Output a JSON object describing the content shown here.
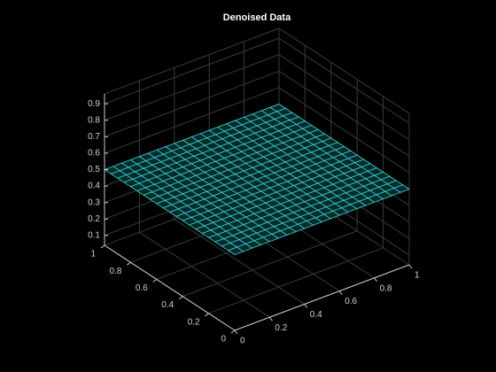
{
  "chart_data": {
    "type": "mesh",
    "title": "Denoised Data",
    "x": [
      0,
      0.05,
      0.1,
      0.15,
      0.2,
      0.25,
      0.3,
      0.35,
      0.4,
      0.45,
      0.5,
      0.55,
      0.6,
      0.65,
      0.7,
      0.75,
      0.8,
      0.85,
      0.9,
      0.95,
      1
    ],
    "y": [
      0,
      0.05,
      0.1,
      0.15,
      0.2,
      0.25,
      0.3,
      0.35,
      0.4,
      0.45,
      0.5,
      0.55,
      0.6,
      0.65,
      0.7,
      0.75,
      0.8,
      0.85,
      0.9,
      0.95,
      1
    ],
    "z": [
      [
        0.5,
        0.5,
        0.5,
        0.5,
        0.5,
        0.5,
        0.5,
        0.5,
        0.5,
        0.5,
        0.5,
        0.5,
        0.5,
        0.5,
        0.5,
        0.5,
        0.5,
        0.5,
        0.5,
        0.5,
        0.5
      ],
      [
        0.5,
        0.5,
        0.5,
        0.5,
        0.5,
        0.5,
        0.5,
        0.5,
        0.5,
        0.5,
        0.5,
        0.5,
        0.5,
        0.5,
        0.5,
        0.5,
        0.5,
        0.5,
        0.5,
        0.5,
        0.5
      ],
      [
        0.5,
        0.5,
        0.5,
        0.5,
        0.5,
        0.5,
        0.5,
        0.5,
        0.5,
        0.5,
        0.5,
        0.5,
        0.5,
        0.5,
        0.5,
        0.5,
        0.5,
        0.5,
        0.5,
        0.5,
        0.5
      ],
      [
        0.5,
        0.5,
        0.5,
        0.5,
        0.5,
        0.5,
        0.5,
        0.5,
        0.5,
        0.5,
        0.5,
        0.5,
        0.5,
        0.5,
        0.5,
        0.5,
        0.5,
        0.5,
        0.5,
        0.5,
        0.5
      ],
      [
        0.5,
        0.5,
        0.5,
        0.5,
        0.5,
        0.5,
        0.5,
        0.5,
        0.5,
        0.5,
        0.5,
        0.5,
        0.5,
        0.5,
        0.5,
        0.5,
        0.5,
        0.5,
        0.5,
        0.5,
        0.5
      ],
      [
        0.5,
        0.5,
        0.5,
        0.5,
        0.5,
        0.5,
        0.5,
        0.5,
        0.5,
        0.5,
        0.5,
        0.5,
        0.5,
        0.5,
        0.5,
        0.5,
        0.5,
        0.5,
        0.5,
        0.5,
        0.5
      ],
      [
        0.5,
        0.5,
        0.5,
        0.5,
        0.5,
        0.5,
        0.5,
        0.5,
        0.5,
        0.5,
        0.5,
        0.5,
        0.5,
        0.5,
        0.5,
        0.5,
        0.5,
        0.5,
        0.5,
        0.5,
        0.5
      ],
      [
        0.5,
        0.5,
        0.5,
        0.5,
        0.5,
        0.5,
        0.5,
        0.5,
        0.5,
        0.5,
        0.5,
        0.5,
        0.5,
        0.5,
        0.5,
        0.5,
        0.5,
        0.5,
        0.5,
        0.5,
        0.5
      ],
      [
        0.5,
        0.5,
        0.5,
        0.5,
        0.5,
        0.5,
        0.5,
        0.5,
        0.5,
        0.5,
        0.5,
        0.5,
        0.5,
        0.5,
        0.5,
        0.5,
        0.5,
        0.5,
        0.5,
        0.5,
        0.5
      ],
      [
        0.5,
        0.5,
        0.5,
        0.5,
        0.5,
        0.5,
        0.5,
        0.5,
        0.5,
        0.5,
        0.5,
        0.5,
        0.5,
        0.5,
        0.5,
        0.5,
        0.5,
        0.5,
        0.5,
        0.5,
        0.5
      ],
      [
        0.5,
        0.5,
        0.5,
        0.5,
        0.5,
        0.5,
        0.5,
        0.5,
        0.5,
        0.5,
        0.5,
        0.5,
        0.5,
        0.5,
        0.5,
        0.5,
        0.5,
        0.5,
        0.5,
        0.5,
        0.5
      ],
      [
        0.5,
        0.5,
        0.5,
        0.5,
        0.5,
        0.5,
        0.5,
        0.5,
        0.5,
        0.5,
        0.5,
        0.5,
        0.5,
        0.5,
        0.5,
        0.5,
        0.5,
        0.5,
        0.5,
        0.5,
        0.5
      ],
      [
        0.5,
        0.5,
        0.5,
        0.5,
        0.5,
        0.5,
        0.5,
        0.5,
        0.5,
        0.5,
        0.5,
        0.5,
        0.5,
        0.5,
        0.5,
        0.5,
        0.5,
        0.5,
        0.5,
        0.5,
        0.5
      ],
      [
        0.5,
        0.5,
        0.5,
        0.5,
        0.5,
        0.5,
        0.5,
        0.5,
        0.5,
        0.5,
        0.5,
        0.5,
        0.5,
        0.5,
        0.5,
        0.5,
        0.5,
        0.5,
        0.5,
        0.5,
        0.5
      ],
      [
        0.5,
        0.5,
        0.5,
        0.5,
        0.5,
        0.5,
        0.5,
        0.5,
        0.5,
        0.5,
        0.5,
        0.5,
        0.5,
        0.5,
        0.5,
        0.5,
        0.5,
        0.5,
        0.5,
        0.5,
        0.5
      ],
      [
        0.5,
        0.5,
        0.5,
        0.5,
        0.5,
        0.5,
        0.5,
        0.5,
        0.5,
        0.5,
        0.5,
        0.5,
        0.5,
        0.5,
        0.5,
        0.5,
        0.5,
        0.5,
        0.5,
        0.5,
        0.5
      ],
      [
        0.5,
        0.5,
        0.5,
        0.5,
        0.5,
        0.5,
        0.5,
        0.5,
        0.5,
        0.5,
        0.5,
        0.5,
        0.5,
        0.5,
        0.5,
        0.5,
        0.5,
        0.5,
        0.5,
        0.5,
        0.5
      ],
      [
        0.5,
        0.5,
        0.5,
        0.5,
        0.5,
        0.5,
        0.5,
        0.5,
        0.5,
        0.5,
        0.5,
        0.5,
        0.5,
        0.5,
        0.5,
        0.5,
        0.5,
        0.5,
        0.5,
        0.5,
        0.5
      ],
      [
        0.5,
        0.5,
        0.5,
        0.5,
        0.5,
        0.5,
        0.5,
        0.5,
        0.5,
        0.5,
        0.5,
        0.5,
        0.5,
        0.5,
        0.5,
        0.5,
        0.5,
        0.5,
        0.5,
        0.5,
        0.5
      ],
      [
        0.5,
        0.5,
        0.5,
        0.5,
        0.5,
        0.5,
        0.5,
        0.5,
        0.5,
        0.5,
        0.5,
        0.5,
        0.5,
        0.5,
        0.5,
        0.5,
        0.5,
        0.5,
        0.5,
        0.5,
        0.5
      ],
      [
        0.5,
        0.5,
        0.5,
        0.5,
        0.5,
        0.5,
        0.5,
        0.5,
        0.5,
        0.5,
        0.5,
        0.5,
        0.5,
        0.5,
        0.5,
        0.5,
        0.5,
        0.5,
        0.5,
        0.5,
        0.5
      ]
    ],
    "color": "#33d6d6",
    "xlim": [
      0,
      1
    ],
    "ylim": [
      0,
      1
    ],
    "zlim": [
      0.04,
      0.96
    ],
    "xticks": [
      0,
      0.2,
      0.4,
      0.6,
      0.8,
      1
    ],
    "yticks": [
      0,
      0.2,
      0.4,
      0.6,
      0.8,
      1
    ],
    "zticks": [
      0.1,
      0.2,
      0.3,
      0.4,
      0.5,
      0.6,
      0.7,
      0.8,
      0.9
    ],
    "grid": true
  }
}
